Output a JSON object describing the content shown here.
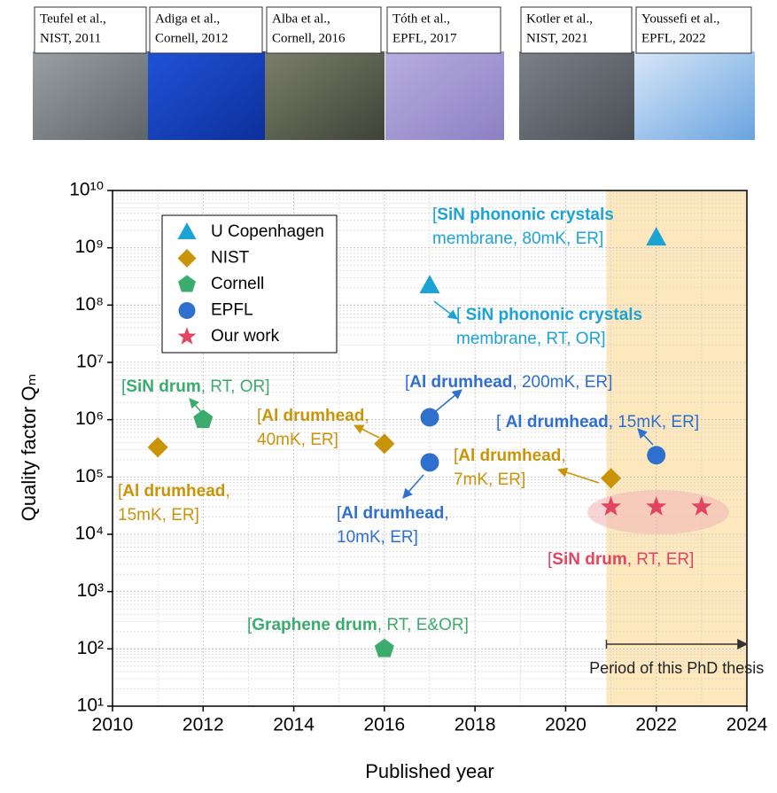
{
  "references": [
    {
      "lines": [
        "Teufel et al.,",
        "NIST, 2011"
      ]
    },
    {
      "lines": [
        "Adiga et al.,",
        "Cornell, 2012"
      ]
    },
    {
      "lines": [
        "Alba et al.,",
        "Cornell, 2016"
      ]
    },
    {
      "lines": [
        "Tóth et al.,",
        "EPFL, 2017"
      ]
    },
    {
      "lines": [
        "Kotler et al.,",
        "NIST, 2021"
      ]
    },
    {
      "lines": [
        "Youssefi et al.,",
        "EPFL, 2022"
      ]
    }
  ],
  "chart_data": {
    "type": "scatter",
    "xlabel": "Published year",
    "ylabel": "Quality factor Qₘ",
    "xlim": [
      2010,
      2024
    ],
    "xticks": [
      2010,
      2012,
      2014,
      2016,
      2018,
      2020,
      2022,
      2024
    ],
    "ylim": [
      10,
      10000000000.0
    ],
    "yticks": [
      {
        "value": 10,
        "label": "10¹"
      },
      {
        "value": 100,
        "label": "10²"
      },
      {
        "value": 1000,
        "label": "10³"
      },
      {
        "value": 10000.0,
        "label": "10⁴"
      },
      {
        "value": 100000.0,
        "label": "10⁵"
      },
      {
        "value": 1000000.0,
        "label": "10⁶"
      },
      {
        "value": 10000000.0,
        "label": "10⁷"
      },
      {
        "value": 100000000.0,
        "label": "10⁸"
      },
      {
        "value": 1000000000.0,
        "label": "10⁹"
      },
      {
        "value": 10000000000.0,
        "label": "10¹⁰"
      }
    ],
    "log_y": true,
    "grid": true,
    "legend": "upper left",
    "shaded_xrange": [
      2020.9,
      2024
    ],
    "shaded_color": "#fde8bd",
    "span_label": "Period of this PhD thesis",
    "series": [
      {
        "name": "U Copenhagen",
        "color": "#1ca3d6",
        "marker": "triangle",
        "x": [
          2017,
          2022
        ],
        "values": [
          220000000.0,
          1500000000.0
        ]
      },
      {
        "name": "NIST",
        "color": "#c99408",
        "marker": "diamond",
        "x": [
          2011,
          2016,
          2021
        ],
        "values": [
          330000.0,
          380000.0,
          95000.0
        ]
      },
      {
        "name": "Cornell",
        "color": "#3cab6e",
        "marker": "pentagon",
        "x": [
          2012,
          2016
        ],
        "values": [
          1000000.0,
          100
        ]
      },
      {
        "name": "EPFL",
        "color": "#2f6fce",
        "marker": "circle",
        "x": [
          2017,
          2017,
          2022
        ],
        "values": [
          1100000.0,
          180000.0,
          240000.0
        ]
      },
      {
        "name": "Our work",
        "color": "#e2455f",
        "marker": "star",
        "x": [
          2021,
          2022,
          2023
        ],
        "values": [
          30000.0,
          30000.0,
          30000.0
        ]
      }
    ],
    "annotations": [
      {
        "color": "#1ca3d6",
        "lines": [
          [
            {
              "text": "["
            },
            {
              "text": "SiN phononic crystals",
              "bold": true
            }
          ],
          [
            {
              "text": "membrane, 80mK, ER]"
            }
          ]
        ]
      },
      {
        "color": "#1ca3d6",
        "lines": [
          [
            {
              "text": "[ "
            },
            {
              "text": "SiN phononic crystals",
              "bold": true
            }
          ],
          [
            {
              "text": "membrane, RT, OR]"
            }
          ]
        ]
      },
      {
        "color": "#3cab6e",
        "lines": [
          [
            {
              "text": "["
            },
            {
              "text": "SiN drum",
              "bold": true
            },
            {
              "text": ", RT, OR]"
            }
          ]
        ]
      },
      {
        "color": "#c99408",
        "lines": [
          [
            {
              "text": "["
            },
            {
              "text": "Al drumhead",
              "bold": true
            },
            {
              "text": ","
            }
          ],
          [
            {
              "text": "40mK, ER]"
            }
          ]
        ]
      },
      {
        "color": "#c99408",
        "lines": [
          [
            {
              "text": "["
            },
            {
              "text": "Al drumhead",
              "bold": true
            },
            {
              "text": ","
            }
          ],
          [
            {
              "text": "15mK, ER]"
            }
          ]
        ]
      },
      {
        "color": "#2f6fce",
        "lines": [
          [
            {
              "text": "["
            },
            {
              "text": "Al drumhead",
              "bold": true
            },
            {
              "text": ", 200mK, ER]"
            }
          ]
        ]
      },
      {
        "color": "#2f6fce",
        "lines": [
          [
            {
              "text": "["
            },
            {
              "text": "Al drumhead",
              "bold": true
            },
            {
              "text": ","
            }
          ],
          [
            {
              "text": "10mK, ER]"
            }
          ]
        ]
      },
      {
        "color": "#2f6fce",
        "lines": [
          [
            {
              "text": "[ "
            },
            {
              "text": "Al drumhead",
              "bold": true
            },
            {
              "text": ", 15mK, ER]"
            }
          ]
        ]
      },
      {
        "color": "#c99408",
        "lines": [
          [
            {
              "text": "["
            },
            {
              "text": "Al drumhead",
              "bold": true
            },
            {
              "text": ","
            }
          ],
          [
            {
              "text": "7mK, ER]"
            }
          ]
        ]
      },
      {
        "color": "#e2455f",
        "lines": [
          [
            {
              "text": "["
            },
            {
              "text": "SiN drum",
              "bold": true
            },
            {
              "text": ", RT, ER]"
            }
          ]
        ]
      },
      {
        "color": "#3cab6e",
        "lines": [
          [
            {
              "text": "["
            },
            {
              "text": "Graphene drum",
              "bold": true
            },
            {
              "text": ", RT, E&OR]"
            }
          ]
        ]
      }
    ]
  }
}
